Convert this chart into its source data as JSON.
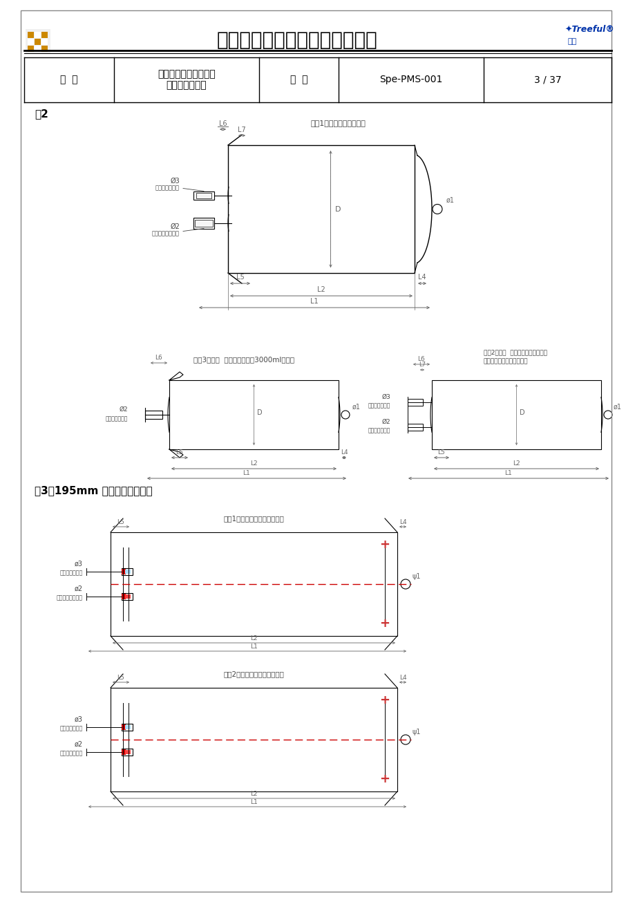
{
  "title": "上海长征富民金山制药有限公司",
  "header_label1": "题  目",
  "header_content1a": "腹膜透析液、冲洗液用",
  "header_content1b": "聚氯乙烯塑料袋",
  "header_label2": "编  号",
  "header_content2": "Spe-PMS-001",
  "header_page": "3 / 37",
  "fig2_label": "图2",
  "fig3_label": "图3：195mm 的药液袋袋子样图",
  "bag1_title": "袋型1：双袋双联系统专用",
  "bag3_title": "袋型3：单管  甘氨酸冲洗液、3000ml类专用",
  "bag2_title": "袋型2：双管  单袋腹膜透析液、血液换液、甘氨酸冲洗液专用",
  "fig3_bag1_title": "袋型1：腹膜透析液用双联系统",
  "fig3_bag2_title": "袋型2：单管引流液、血液系统",
  "label_phi3_top": "Ø3\n输液管用加药塞",
  "label_phi2_top": "Ø2\n连接双联冲洗系统",
  "label_phi2_bag3": "Ø2\n输液管冲袋托架",
  "label_phi3_bag2": "Ø3\n输液管用加药塞",
  "label_phi2_bag2r": "Ø2\n输液管冲袋托架",
  "bg_color": "#ffffff",
  "line_color": "#000000",
  "dim_color": "#666666",
  "label_color": "#444444",
  "red_color": "#cc0000",
  "blue_color": "#0033aa",
  "orange_color": "#cc8800"
}
